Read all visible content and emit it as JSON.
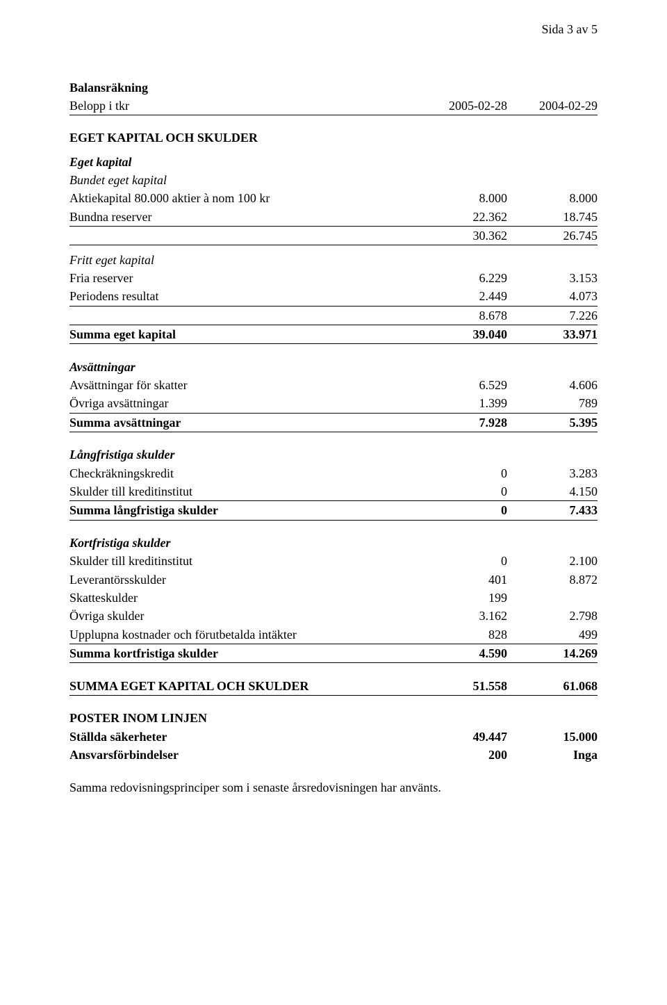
{
  "pageNum": "Sida 3 av 5",
  "title": "Balansräkning",
  "unitLine": {
    "label": "Belopp i tkr",
    "col1": "2005-02-28",
    "col2": "2004-02-29"
  },
  "sections": {
    "equityHeader": "EGET KAPITAL OCH SKULDER",
    "equityGroup": "Eget kapital",
    "boundEquity": {
      "title": "Bundet eget kapital",
      "rows": [
        {
          "label": "Aktiekapital 80.000 aktier à nom 100 kr",
          "c1": "8.000",
          "c2": "8.000"
        },
        {
          "label": "Bundna reserver",
          "c1": "22.362",
          "c2": "18.745"
        }
      ],
      "subtotal": {
        "c1": "30.362",
        "c2": "26.745"
      }
    },
    "freeEquity": {
      "title": "Fritt eget kapital",
      "rows": [
        {
          "label": "Fria reserver",
          "c1": "6.229",
          "c2": "3.153"
        },
        {
          "label": "Periodens resultat",
          "c1": "2.449",
          "c2": "4.073"
        }
      ],
      "subtotal": {
        "c1": "8.678",
        "c2": "7.226"
      }
    },
    "equityTotal": {
      "label": "Summa eget kapital",
      "c1": "39.040",
      "c2": "33.971"
    },
    "provisions": {
      "title": "Avsättningar",
      "rows": [
        {
          "label": "Avsättningar för skatter",
          "c1": "6.529",
          "c2": "4.606"
        },
        {
          "label": "Övriga avsättningar",
          "c1": "1.399",
          "c2": "789"
        }
      ],
      "total": {
        "label": "Summa avsättningar",
        "c1": "7.928",
        "c2": "5.395"
      }
    },
    "longTerm": {
      "title": "Långfristiga skulder",
      "rows": [
        {
          "label": "Checkräkningskredit",
          "c1": "0",
          "c2": "3.283"
        },
        {
          "label": "Skulder till kreditinstitut",
          "c1": "0",
          "c2": "4.150"
        }
      ],
      "total": {
        "label": "Summa långfristiga skulder",
        "c1": "0",
        "c2": "7.433"
      }
    },
    "shortTerm": {
      "title": "Kortfristiga skulder",
      "rows": [
        {
          "label": "Skulder till kreditinstitut",
          "c1": "0",
          "c2": "2.100"
        },
        {
          "label": "Leverantörsskulder",
          "c1": "401",
          "c2": "8.872"
        },
        {
          "label": "Skatteskulder",
          "c1": "199",
          "c2": ""
        },
        {
          "label": "Övriga skulder",
          "c1": "3.162",
          "c2": "2.798"
        },
        {
          "label": "Upplupna kostnader och förutbetalda intäkter",
          "c1": "828",
          "c2": "499"
        }
      ],
      "total": {
        "label": "Summa kortfristiga skulder",
        "c1": "4.590",
        "c2": "14.269"
      }
    },
    "grandTotal": {
      "label": "SUMMA EGET KAPITAL OCH SKULDER",
      "c1": "51.558",
      "c2": "61.068"
    },
    "offBalance": {
      "title": "POSTER INOM LINJEN",
      "rows": [
        {
          "label": "Ställda säkerheter",
          "c1": "49.447",
          "c2": "15.000"
        },
        {
          "label": "Ansvarsförbindelser",
          "c1": "200",
          "c2": "Inga"
        }
      ]
    }
  },
  "footerNote": "Samma redovisningsprinciper som i senaste årsredovisningen har använts."
}
